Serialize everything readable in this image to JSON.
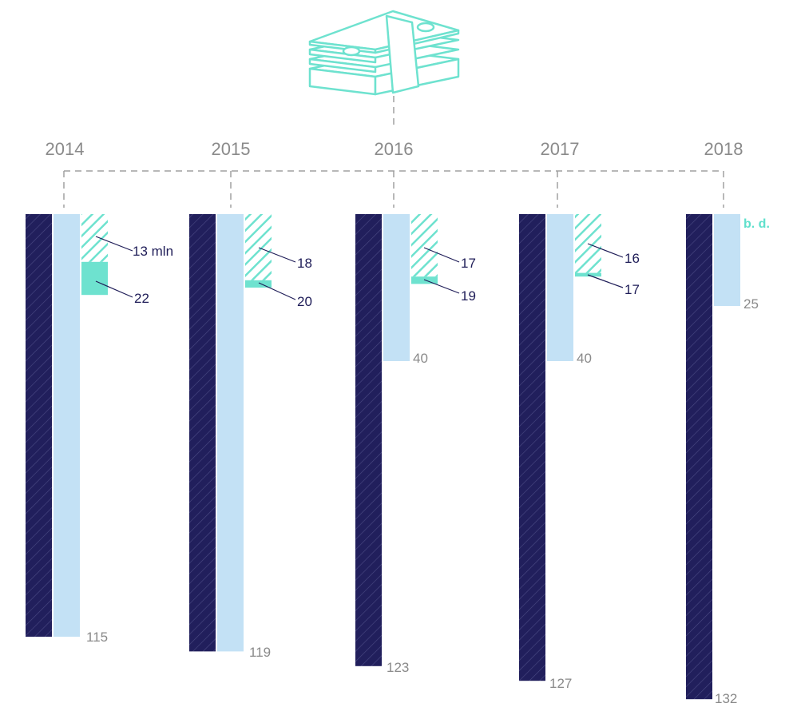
{
  "colors": {
    "navy": "#211f5c",
    "light_blue": "#c3e1f5",
    "teal": "#6ee2cf",
    "grey_text": "#8a8a8a",
    "navy_text": "#1f1d58",
    "connector": "#a0a0a0"
  },
  "icon": "banknote-stack-icon",
  "chart_data": {
    "type": "bar",
    "categories": [
      "2014",
      "2015",
      "2016",
      "2017",
      "2018"
    ],
    "series": [
      {
        "style": "navy-hatched",
        "values": [
          115,
          119,
          123,
          127,
          132
        ],
        "labels": [
          "115",
          "119",
          "123",
          "127",
          "132"
        ]
      },
      {
        "style": "light-blue",
        "values": [
          115,
          119,
          40,
          40,
          25
        ],
        "labels": [
          "115",
          "119",
          "40",
          "40",
          "25"
        ]
      },
      {
        "style": "teal-hatched",
        "values": [
          13,
          18,
          17,
          16,
          null
        ],
        "labels": [
          "13 mln",
          "18",
          "17",
          "16",
          "b. d."
        ]
      },
      {
        "style": "teal-solid",
        "values": [
          22,
          20,
          19,
          17,
          null
        ],
        "labels": [
          "22",
          "20",
          "19",
          "17",
          ""
        ]
      }
    ],
    "ylim": [
      0,
      132
    ],
    "grid": false,
    "legend": "none"
  }
}
